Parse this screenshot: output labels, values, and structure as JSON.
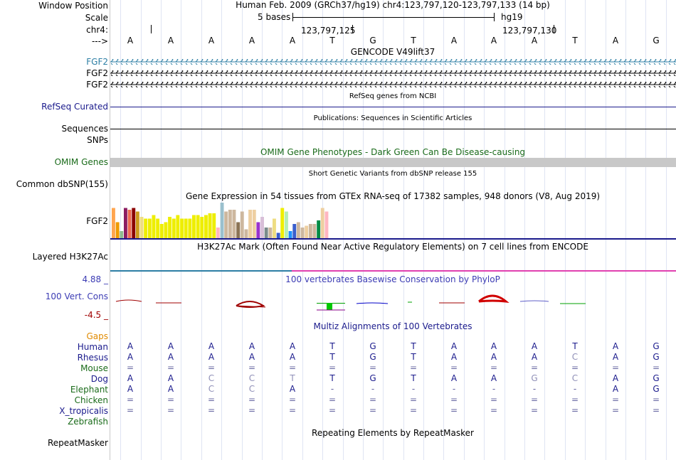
{
  "header": {
    "window_position_label": "Window Position",
    "scale_label": "Scale",
    "chrom_label": "chr4:",
    "arrow_label": "--->",
    "assembly_text": "Human Feb. 2009 (GRCh37/hg19)   chr4:123,797,120-123,797,133 (14 bp)",
    "scale_text": "5 bases",
    "db_text": "hg19",
    "pos1": "123,797,125",
    "pos2": "123,797,130",
    "bases": [
      "A",
      "A",
      "A",
      "A",
      "A",
      "T",
      "G",
      "T",
      "A",
      "A",
      "A",
      "T",
      "A",
      "G"
    ]
  },
  "tracks": {
    "gencode": {
      "title": "GENCODE V49lift37",
      "labels": [
        "FGF2",
        "FGF2",
        "FGF2"
      ],
      "colors": [
        "#2c7ea4",
        "#000000",
        "#000000"
      ]
    },
    "refseq": {
      "title": "RefSeq genes from NCBI",
      "label": "RefSeq Curated"
    },
    "publications": {
      "title": "Publications: Sequences in Scientific Articles",
      "label": "Sequences"
    },
    "snps_label": "SNPs",
    "omim": {
      "title": "OMIM Gene Phenotypes - Dark Green Can Be Disease-causing",
      "label": "OMIM Genes"
    },
    "dbsnp": {
      "title": "Short Genetic Variants from dbSNP release 155",
      "label": "Common dbSNP(155)"
    },
    "gtex": {
      "title": "Gene Expression in 54 tissues from GTEx RNA-seq of 17382 samples, 948 donors (V8, Aug 2019)",
      "label": "FGF2",
      "bar_values": [
        0.85,
        0.45,
        0.2,
        0.85,
        0.8,
        0.85,
        0.75,
        0.6,
        0.55,
        0.55,
        0.65,
        0.55,
        0.4,
        0.45,
        0.6,
        0.55,
        0.65,
        0.55,
        0.55,
        0.55,
        0.65,
        0.65,
        0.6,
        0.65,
        0.7,
        0.7,
        0.3,
        1.0,
        0.75,
        0.8,
        0.8,
        0.45,
        0.75,
        0.25,
        0.8,
        0.8,
        0.45,
        0.6,
        0.3,
        0.3,
        0.55,
        0.15,
        0.85,
        0.75,
        0.2,
        0.4,
        0.45,
        0.3,
        0.35,
        0.4,
        0.4,
        0.5,
        0.85,
        0.75
      ],
      "bar_colors": [
        "#ffa54f",
        "#ee9a00",
        "#8fbc8f",
        "#8b1c62",
        "#ee6a50",
        "#8b0000",
        "#cd9b1d",
        "#eedd82",
        "#eeee00",
        "#eeee00",
        "#eeee00",
        "#eeee00",
        "#eeee00",
        "#eeee00",
        "#eeee00",
        "#eeee00",
        "#eeee00",
        "#eeee00",
        "#eeee00",
        "#eeee00",
        "#eeee00",
        "#eeee00",
        "#eeee00",
        "#eeee00",
        "#eeee00",
        "#eeee00",
        "#ffb6c1",
        "#9ac0cd",
        "#cdb79e",
        "#cdb79e",
        "#cdb79e",
        "#8b7355",
        "#cdb79e",
        "#cdb79e",
        "#eecfa1",
        "#eecfa1",
        "#9a32cd",
        "#d8bfd8",
        "#7a8b8b",
        "#cdb79e",
        "#eedd82",
        "#3a5fcd",
        "#eeee00",
        "#b4eeb4",
        "#1e90ff",
        "#3a5fcd",
        "#cdb79e",
        "#cdb79e",
        "#eecfa1",
        "#cdb79e",
        "#cdb79e",
        "#008b45",
        "#eecfa1",
        "#ffb6c1"
      ]
    },
    "h3k27ac": {
      "title": "H3K27Ac Mark (Often Found Near Active Regulatory Elements) on 7 cell lines from ENCODE",
      "label": "Layered H3K27Ac"
    },
    "conservation": {
      "title": "100 vertebrates Basewise Conservation by PhyloP",
      "label": "100 Vert. Cons",
      "max_label": "4.88 _",
      "min_label": "-4.5 _",
      "pos_color": "#0000c8",
      "neg_color": "#a00000"
    },
    "multiz": {
      "title": "Multiz Alignments of 100 Vertebrates",
      "gaps_label": "Gaps",
      "species": [
        {
          "name": "Human",
          "color": "#1a1a8c",
          "seq": [
            "A",
            "A",
            "A",
            "A",
            "A",
            "T",
            "G",
            "T",
            "A",
            "A",
            "A",
            "T",
            "A",
            "G"
          ]
        },
        {
          "name": "Rhesus",
          "color": "#1a1a8c",
          "seq": [
            "A",
            "A",
            "A",
            "A",
            "A",
            "T",
            "G",
            "T",
            "A",
            "A",
            "A",
            "C",
            "A",
            "G"
          ]
        },
        {
          "name": "Mouse",
          "color": "#1a6b1a",
          "seq": [
            "=",
            "=",
            "=",
            "=",
            "=",
            "=",
            "=",
            "=",
            "=",
            "=",
            "=",
            "=",
            "=",
            "="
          ]
        },
        {
          "name": "Dog",
          "color": "#1a1a8c",
          "seq": [
            "A",
            "A",
            "C",
            "C",
            "T",
            "T",
            "G",
            "T",
            "A",
            "A",
            "G",
            "C",
            "A",
            "G"
          ]
        },
        {
          "name": "Elephant",
          "color": "#1a6b1a",
          "seq": [
            "A",
            "A",
            "C",
            "C",
            "A",
            "-",
            "-",
            "-",
            "-",
            "-",
            "-",
            "-",
            "A",
            "G"
          ]
        },
        {
          "name": "Chicken",
          "color": "#1a6b1a",
          "seq": [
            "=",
            "=",
            "=",
            "=",
            "=",
            "=",
            "=",
            "=",
            "=",
            "=",
            "=",
            "=",
            "=",
            "="
          ]
        },
        {
          "name": "X_tropicalis",
          "color": "#1a1a8c",
          "seq": [
            "=",
            "=",
            "=",
            "=",
            "=",
            "=",
            "=",
            "=",
            "=",
            "=",
            "=",
            "=",
            "=",
            "="
          ]
        },
        {
          "name": "Zebrafish",
          "color": "#1a6b1a",
          "seq": []
        }
      ]
    },
    "repeatmasker": {
      "title": "Repeating Elements by RepeatMasker",
      "label": "RepeatMasker"
    }
  },
  "colors": {
    "link_blue": "#1a1a8c",
    "omim_gray": "#c8c8c8",
    "gencode_teal": "#2c7ea4",
    "conservation_title": "#3c3cb4",
    "gaps_orange": "#e08a00",
    "h3k27ac_pink": "#e040b0"
  }
}
